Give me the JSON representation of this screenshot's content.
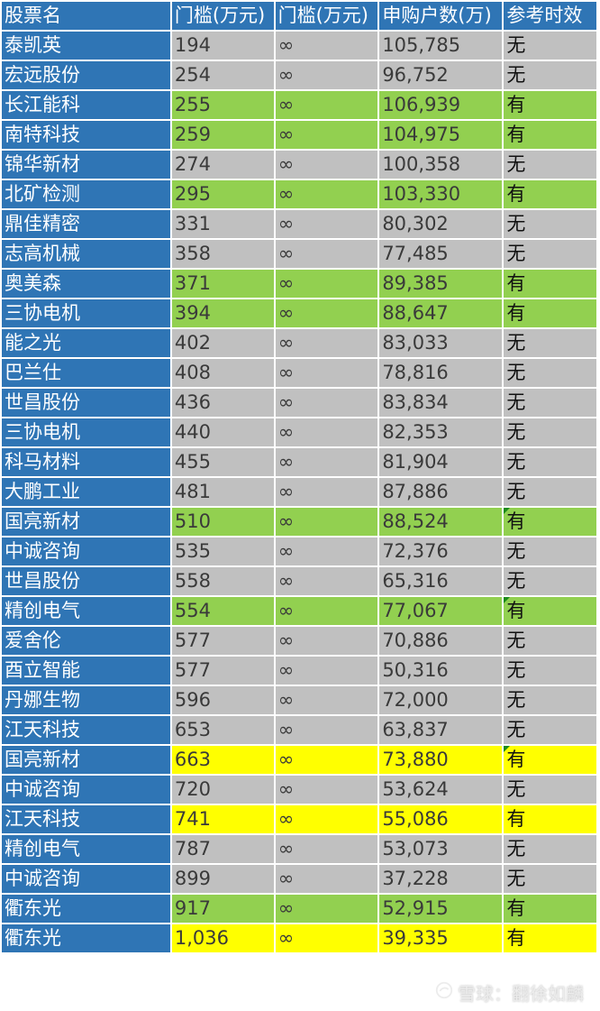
{
  "header": {
    "name": "股票名",
    "threshold_a": "门槛(万元)",
    "threshold_b": "门槛(万元)",
    "subscribers": "申购户数(万)",
    "valid": "参考时效"
  },
  "colors": {
    "header_blue": "#2f75b5",
    "gray": "#c0c0c0",
    "green": "#92d050",
    "yellow": "#ffff00",
    "marker_green": "#1a8a1a"
  },
  "rows": [
    {
      "name": "泰凯英",
      "a": "194",
      "b": "∞",
      "subs": "105,785",
      "valid": "无",
      "color": "gray",
      "marker": false
    },
    {
      "name": "宏远股份",
      "a": "254",
      "b": "∞",
      "subs": "96,752",
      "valid": "无",
      "color": "gray",
      "marker": false
    },
    {
      "name": "长江能科",
      "a": "255",
      "b": "∞",
      "subs": "106,939",
      "valid": "有",
      "color": "green",
      "marker": false
    },
    {
      "name": "南特科技",
      "a": "259",
      "b": "∞",
      "subs": "104,975",
      "valid": "有",
      "color": "green",
      "marker": false
    },
    {
      "name": "锦华新材",
      "a": "274",
      "b": "∞",
      "subs": "100,358",
      "valid": "无",
      "color": "gray",
      "marker": false
    },
    {
      "name": "北矿检测",
      "a": "295",
      "b": "∞",
      "subs": "103,330",
      "valid": "有",
      "color": "green",
      "marker": false
    },
    {
      "name": "鼎佳精密",
      "a": "331",
      "b": "∞",
      "subs": "80,302",
      "valid": "无",
      "color": "gray",
      "marker": false
    },
    {
      "name": "志高机械",
      "a": "358",
      "b": "∞",
      "subs": "77,485",
      "valid": "无",
      "color": "gray",
      "marker": false
    },
    {
      "name": "奥美森",
      "a": "371",
      "b": "∞",
      "subs": "89,385",
      "valid": "有",
      "color": "green",
      "marker": false
    },
    {
      "name": "三协电机",
      "a": "394",
      "b": "∞",
      "subs": "88,647",
      "valid": "有",
      "color": "green",
      "marker": false
    },
    {
      "name": "能之光",
      "a": "402",
      "b": "∞",
      "subs": "83,033",
      "valid": "无",
      "color": "gray",
      "marker": false
    },
    {
      "name": "巴兰仕",
      "a": "408",
      "b": "∞",
      "subs": "78,816",
      "valid": "无",
      "color": "gray",
      "marker": false
    },
    {
      "name": "世昌股份",
      "a": "436",
      "b": "∞",
      "subs": "83,834",
      "valid": "无",
      "color": "gray",
      "marker": false
    },
    {
      "name": "三协电机",
      "a": "440",
      "b": "∞",
      "subs": "82,353",
      "valid": "无",
      "color": "gray",
      "marker": false
    },
    {
      "name": "科马材料",
      "a": "455",
      "b": "∞",
      "subs": "81,904",
      "valid": "无",
      "color": "gray",
      "marker": false
    },
    {
      "name": "大鹏工业",
      "a": "481",
      "b": "∞",
      "subs": "87,886",
      "valid": "无",
      "color": "gray",
      "marker": false
    },
    {
      "name": "国亮新材",
      "a": "510",
      "b": "∞",
      "subs": "88,524",
      "valid": "有",
      "color": "green",
      "marker": true
    },
    {
      "name": "中诚咨询",
      "a": "535",
      "b": "∞",
      "subs": "72,376",
      "valid": "无",
      "color": "gray",
      "marker": false
    },
    {
      "name": "世昌股份",
      "a": "558",
      "b": "∞",
      "subs": "65,316",
      "valid": "无",
      "color": "gray",
      "marker": false
    },
    {
      "name": "精创电气",
      "a": "554",
      "b": "∞",
      "subs": "77,067",
      "valid": "有",
      "color": "green",
      "marker": true
    },
    {
      "name": "爱舍伦",
      "a": "577",
      "b": "∞",
      "subs": "70,886",
      "valid": "无",
      "color": "gray",
      "marker": false
    },
    {
      "name": "酉立智能",
      "a": "577",
      "b": "∞",
      "subs": "50,316",
      "valid": "无",
      "color": "gray",
      "marker": false
    },
    {
      "name": "丹娜生物",
      "a": "596",
      "b": "∞",
      "subs": "72,000",
      "valid": "无",
      "color": "gray",
      "marker": false
    },
    {
      "name": "江天科技",
      "a": "653",
      "b": "∞",
      "subs": "63,837",
      "valid": "无",
      "color": "gray",
      "marker": false
    },
    {
      "name": "国亮新材",
      "a": "663",
      "b": "∞",
      "subs": "73,880",
      "valid": "有",
      "color": "yellow",
      "marker": true
    },
    {
      "name": "中诚咨询",
      "a": "720",
      "b": "∞",
      "subs": "53,624",
      "valid": "无",
      "color": "gray",
      "marker": false
    },
    {
      "name": "江天科技",
      "a": "741",
      "b": "∞",
      "subs": "55,086",
      "valid": "有",
      "color": "yellow",
      "marker": false
    },
    {
      "name": "精创电气",
      "a": "787",
      "b": "∞",
      "subs": "53,073",
      "valid": "无",
      "color": "gray",
      "marker": false
    },
    {
      "name": "中诚咨询",
      "a": "899",
      "b": "∞",
      "subs": "37,228",
      "valid": "无",
      "color": "gray",
      "marker": false
    },
    {
      "name": "衢东光",
      "a": "917",
      "b": "∞",
      "subs": "52,915",
      "valid": "有",
      "color": "green",
      "marker": false
    },
    {
      "name": "衢东光",
      "a": "1,036",
      "b": "∞",
      "subs": "39,335",
      "valid": "有",
      "color": "yellow",
      "marker": false
    }
  ],
  "watermark": {
    "icon": "snowball-logo-icon",
    "text": "雪球：翻徐如麟"
  }
}
